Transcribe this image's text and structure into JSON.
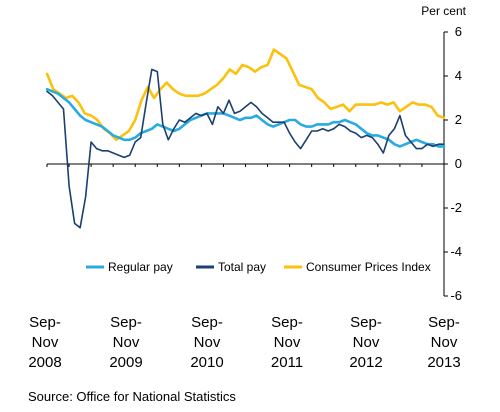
{
  "chart_data": {
    "type": "line",
    "ylabel": "Per cent",
    "ylim": [
      -6,
      6
    ],
    "yticks": [
      6,
      4,
      2,
      0,
      -2,
      -4,
      -6
    ],
    "x_tick_labels": [
      [
        "Sep-",
        "Nov",
        "2008"
      ],
      [
        "Sep-",
        "Nov",
        "2009"
      ],
      [
        "Sep-",
        "Nov",
        "2010"
      ],
      [
        "Sep-",
        "Nov",
        "2011"
      ],
      [
        "Sep-",
        "Nov",
        "2012"
      ],
      [
        "Sep-",
        "Nov",
        "2013"
      ]
    ],
    "source": "Source: Office for National Statistics",
    "legend_position": "lower-middle",
    "grid": false,
    "series": [
      {
        "name": "Regular pay",
        "color": "#29aae1",
        "values": [
          3.4,
          3.3,
          3.2,
          3.0,
          2.8,
          2.5,
          2.2,
          2.0,
          1.9,
          1.8,
          1.7,
          1.5,
          1.3,
          1.2,
          1.1,
          1.1,
          1.2,
          1.4,
          1.5,
          1.6,
          1.8,
          1.7,
          1.6,
          1.5,
          1.6,
          1.8,
          2.0,
          2.1,
          2.2,
          2.3,
          2.3,
          2.3,
          2.3,
          2.2,
          2.1,
          2.0,
          2.1,
          2.1,
          2.2,
          2.0,
          1.8,
          1.7,
          1.8,
          1.9,
          2.0,
          2.0,
          1.8,
          1.7,
          1.7,
          1.8,
          1.8,
          1.8,
          1.9,
          1.9,
          2.0,
          1.9,
          1.8,
          1.6,
          1.4,
          1.3,
          1.3,
          1.2,
          1.1,
          0.9,
          0.8,
          0.9,
          1.0,
          1.1,
          1.0,
          0.9,
          0.9,
          0.8,
          0.8
        ]
      },
      {
        "name": "Total pay",
        "color": "#1b3f6e",
        "values": [
          3.3,
          3.1,
          2.8,
          2.5,
          -1.0,
          -2.7,
          -2.9,
          -1.5,
          1.0,
          0.7,
          0.6,
          0.6,
          0.5,
          0.4,
          0.3,
          0.4,
          1.0,
          1.2,
          2.8,
          4.3,
          4.2,
          1.8,
          1.1,
          1.6,
          2.0,
          1.9,
          2.1,
          2.3,
          2.2,
          2.3,
          1.8,
          2.6,
          2.3,
          2.9,
          2.3,
          2.4,
          2.6,
          2.8,
          2.6,
          2.3,
          2.1,
          1.9,
          1.9,
          1.9,
          1.4,
          1.0,
          0.7,
          1.1,
          1.5,
          1.5,
          1.6,
          1.5,
          1.6,
          1.8,
          1.7,
          1.5,
          1.4,
          1.2,
          1.3,
          1.2,
          0.9,
          0.5,
          1.3,
          1.6,
          2.2,
          1.3,
          1.0,
          0.7,
          0.7,
          0.9,
          0.8,
          0.9,
          0.9
        ]
      },
      {
        "name": "Consumer Prices Index",
        "color": "#fbc10e",
        "values": [
          4.1,
          3.4,
          3.2,
          3.0,
          3.1,
          2.8,
          2.3,
          2.2,
          2.0,
          1.6,
          1.4,
          1.1,
          1.3,
          1.5,
          2.0,
          2.9,
          3.5,
          3.0,
          3.4,
          3.7,
          3.4,
          3.2,
          3.1,
          3.1,
          3.1,
          3.2,
          3.4,
          3.6,
          3.9,
          4.3,
          4.1,
          4.5,
          4.4,
          4.2,
          4.4,
          4.5,
          5.2,
          5.0,
          4.8,
          4.2,
          3.6,
          3.5,
          3.4,
          3.0,
          2.8,
          2.5,
          2.6,
          2.7,
          2.4,
          2.7,
          2.7,
          2.7,
          2.7,
          2.8,
          2.7,
          2.8,
          2.4,
          2.6,
          2.8,
          2.7,
          2.7,
          2.6,
          2.2,
          2.1
        ]
      }
    ]
  }
}
